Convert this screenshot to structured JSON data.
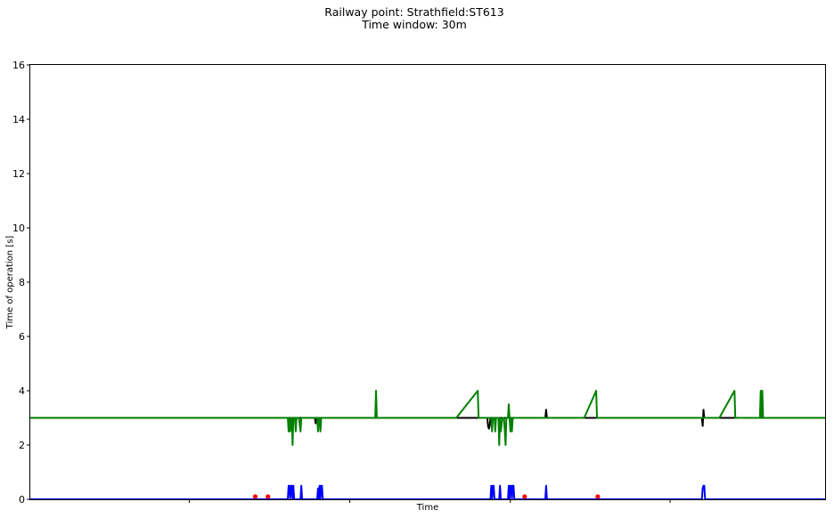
{
  "chart_data": {
    "type": "line",
    "title": [
      "Railway point: Strathfield:ST613",
      "Time window: 30m"
    ],
    "xlabel": "Time",
    "ylabel": "Time of operation [s]",
    "xlim": [
      0,
      1000
    ],
    "ylim": [
      0,
      16
    ],
    "yticks": [
      0,
      2,
      4,
      6,
      8,
      10,
      12,
      14,
      16
    ],
    "xticks": [
      200,
      402,
      604,
      805
    ],
    "xtick_labels": false,
    "grid": false,
    "colors": {
      "black": "#000000",
      "green": "#008000",
      "blue": "#0000ff",
      "red": "#ff0000"
    },
    "series": [
      {
        "color": "#000000",
        "kind": "line",
        "x": [
          0,
          358,
          359,
          360,
          361,
          575,
          576,
          577,
          578,
          579,
          580,
          648,
          649,
          650,
          651,
          845,
          846,
          847,
          848,
          1000
        ],
        "y": [
          3,
          3,
          2.8,
          3,
          3,
          3,
          2.7,
          2.6,
          2.7,
          3,
          3,
          3,
          3.3,
          3,
          3,
          3,
          2.7,
          3.3,
          3,
          3
        ]
      },
      {
        "color": "#008000",
        "kind": "line",
        "x": [
          0,
          324,
          325,
          326,
          327,
          328,
          329,
          330,
          331,
          332,
          333,
          334,
          335,
          336,
          337,
          338,
          340,
          341,
          342,
          343,
          361,
          362,
          363,
          364,
          365,
          366,
          367,
          434,
          435,
          436,
          536,
          563,
          564,
          579,
          580,
          581,
          582,
          583,
          584,
          585,
          586,
          588,
          589,
          590,
          591,
          592,
          594,
          595,
          596,
          598,
          599,
          600,
          601,
          602,
          603,
          604,
          605,
          606,
          607,
          608,
          609,
          697,
          712,
          713,
          867,
          886,
          887,
          918,
          919,
          920,
          921,
          922,
          1000
        ],
        "y": [
          3,
          3,
          2.5,
          3,
          2.5,
          3,
          3,
          2,
          3,
          3,
          3,
          2.5,
          3,
          3,
          3,
          3,
          2.5,
          3,
          3,
          3,
          3,
          2.5,
          3,
          3,
          2.5,
          3,
          3,
          3,
          4,
          3,
          3,
          4,
          3,
          3,
          3,
          2.5,
          3,
          3,
          3,
          2.5,
          3,
          3,
          3,
          2,
          3,
          2.5,
          3,
          3,
          3,
          2,
          3,
          3,
          3,
          3.5,
          3,
          2.5,
          3,
          2.5,
          3,
          3,
          3,
          3,
          4,
          3,
          3,
          4,
          3,
          3,
          4,
          3,
          4,
          3,
          3
        ]
      },
      {
        "color": "#0000ff",
        "kind": "line",
        "x": [
          0,
          324,
          325,
          326,
          327,
          328,
          329,
          330,
          331,
          332,
          340,
          341,
          342,
          361,
          362,
          363,
          364,
          365,
          366,
          367,
          368,
          579,
          580,
          581,
          582,
          583,
          584,
          585,
          590,
          591,
          592,
          601,
          602,
          603,
          604,
          605,
          606,
          607,
          608,
          609,
          648,
          649,
          650,
          845,
          846,
          847,
          848,
          849,
          1000
        ],
        "y": [
          0,
          0,
          0.5,
          0.5,
          0,
          0.5,
          0.5,
          0,
          0.5,
          0,
          0,
          0.5,
          0,
          0,
          0.4,
          0,
          0.5,
          0,
          0.5,
          0.5,
          0,
          0,
          0.5,
          0,
          0.5,
          0.5,
          0,
          0,
          0,
          0.5,
          0,
          0,
          0.5,
          0,
          0.5,
          0.5,
          0,
          0.5,
          0.5,
          0,
          0,
          0.5,
          0,
          0,
          0.4,
          0.5,
          0.5,
          0,
          0
        ]
      },
      {
        "color": "#ff0000",
        "kind": "scatter",
        "x": [
          283,
          299,
          622,
          714
        ],
        "y": [
          0.1,
          0.1,
          0.1,
          0.1
        ]
      }
    ]
  }
}
